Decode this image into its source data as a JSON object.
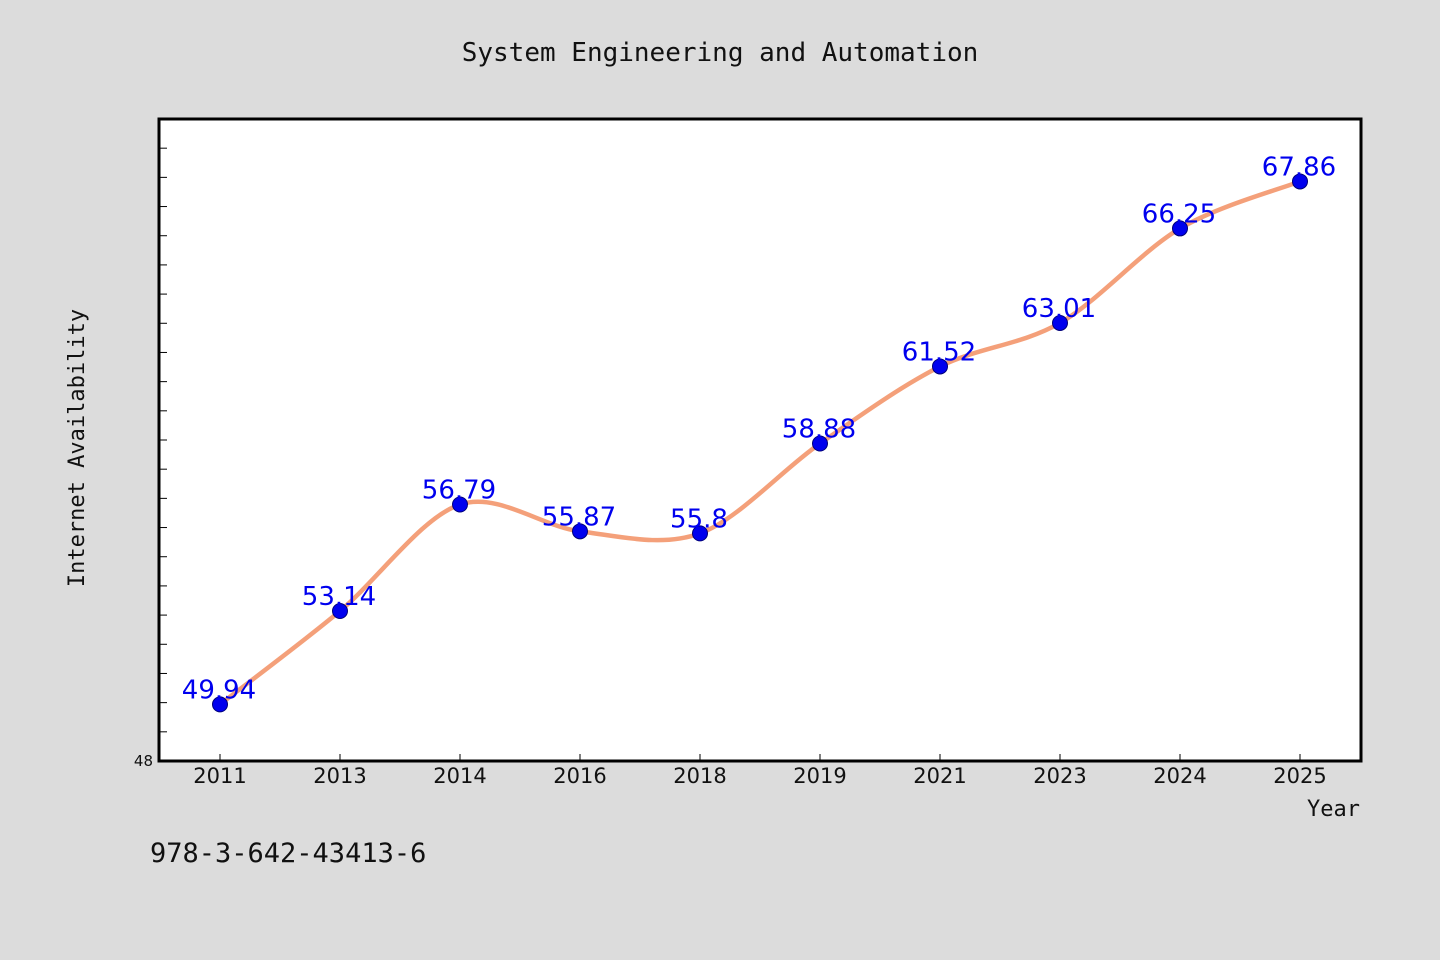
{
  "footer_text": "978-3-642-43413-6",
  "chart_data": {
    "type": "line",
    "title": "System Engineering and Automation",
    "xlabel": "Year",
    "ylabel": "Internet Availability",
    "categories": [
      "2011",
      "2013",
      "2014",
      "2016",
      "2018",
      "2019",
      "2021",
      "2023",
      "2024",
      "2025"
    ],
    "series": [
      {
        "values": [
          49.94,
          53.14,
          56.79,
          55.87,
          55.8,
          58.88,
          61.52,
          63.01,
          66.25,
          67.86
        ],
        "labels": [
          "49.94",
          "53.14",
          "56.79",
          "55.87",
          "55.8",
          "58.88",
          "61.52",
          "63.01",
          "66.25",
          "67.86"
        ],
        "line_color": "#f4a07a",
        "marker_color": "#0000ee"
      }
    ],
    "ylim": [
      48,
      70
    ],
    "yticks_labeled": [
      "48"
    ],
    "ytick_step": 1,
    "grid": false,
    "background_color": "#dcdcdc",
    "plot_background": "#ffffff"
  }
}
